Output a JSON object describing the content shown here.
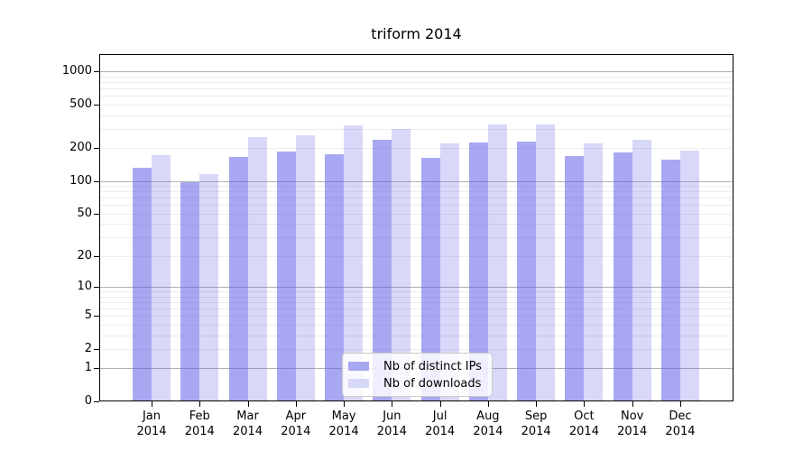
{
  "chart_data": {
    "type": "bar",
    "title": "triform 2014",
    "categories": [
      "Jan",
      "Feb",
      "Mar",
      "Apr",
      "May",
      "Jun",
      "Jul",
      "Aug",
      "Sep",
      "Oct",
      "Nov",
      "Dec"
    ],
    "x_year_label": "2014",
    "series": [
      {
        "name": "Nb of distinct IPs",
        "color": "rgba(90,90,230,0.53)",
        "swatch_color": "#a7a7f0",
        "values": [
          131,
          97,
          165,
          185,
          175,
          240,
          162,
          226,
          230,
          168,
          181,
          156
        ]
      },
      {
        "name": "Nb of downloads",
        "color": "rgba(90,90,230,0.24)",
        "swatch_color": "#d7d7f7",
        "values": [
          171,
          115,
          250,
          260,
          320,
          300,
          219,
          331,
          328,
          222,
          240,
          189
        ]
      }
    ],
    "xlabel": "",
    "ylabel": "",
    "yscale": "log10(value+1)",
    "yticks": [
      1000,
      500,
      200,
      100,
      50,
      20,
      10,
      5,
      2,
      1,
      0
    ],
    "ylim": [
      0,
      1435
    ],
    "grid": {
      "major_at": [
        1,
        10,
        100,
        1000
      ],
      "major_color": "#b2b2b2",
      "minor_color": "#ececec"
    },
    "legend_position": "lower-center"
  }
}
